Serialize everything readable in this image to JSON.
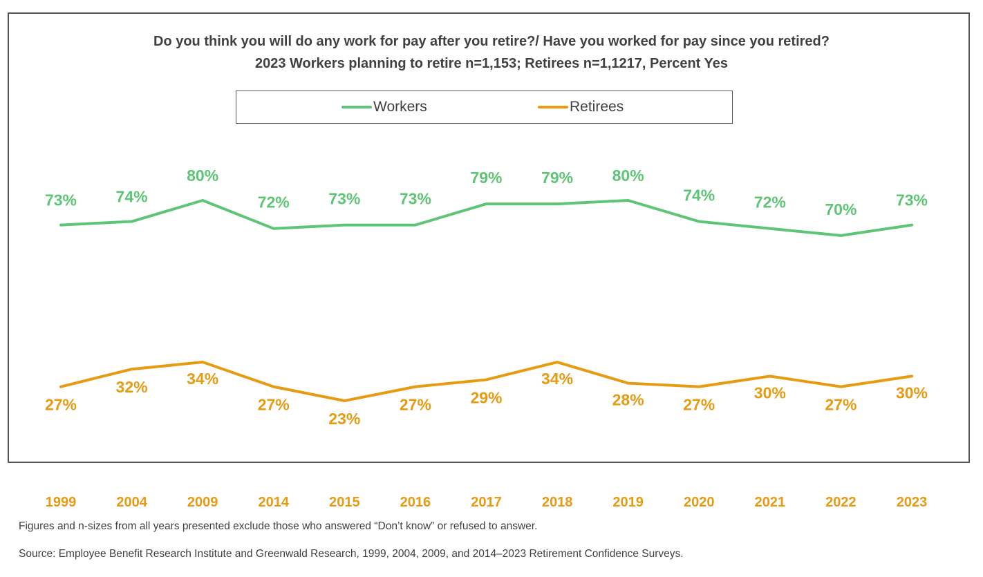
{
  "chart_data": {
    "type": "line",
    "title": "Do you think you will do any work for pay after you retire?/ Have you worked for pay since you retired?",
    "subtitle": "2023 Workers planning to retire n=1,153; Retirees n=1,1217, Percent Yes",
    "categories": [
      "1999",
      "2004",
      "2009",
      "2014",
      "2015",
      "2016",
      "2017",
      "2018",
      "2019",
      "2020",
      "2021",
      "2022",
      "2023"
    ],
    "series": [
      {
        "name": "Workers",
        "color": "#5ec576",
        "values": [
          73,
          74,
          80,
          72,
          73,
          73,
          79,
          79,
          80,
          74,
          72,
          70,
          73
        ],
        "labels": [
          "73%",
          "74%",
          "80%",
          "72%",
          "73%",
          "73%",
          "79%",
          "79%",
          "80%",
          "74%",
          "72%",
          "70%",
          "73%"
        ]
      },
      {
        "name": "Retirees",
        "color": "#e69b12",
        "values": [
          27,
          32,
          34,
          27,
          23,
          27,
          29,
          34,
          28,
          27,
          30,
          27,
          30
        ],
        "labels": [
          "27%",
          "32%",
          "34%",
          "27%",
          "23%",
          "27%",
          "29%",
          "34%",
          "28%",
          "27%",
          "30%",
          "27%",
          "30%"
        ]
      }
    ],
    "legend_position": "top",
    "grid": false,
    "tick_color": "#e69b12",
    "text_color": "#404040"
  },
  "notes": {
    "footnote": "Figures and n-sizes from all years presented exclude those who answered “Don’t know” or refused to answer.",
    "source": "Source:  Employee Benefit Research Institute and Greenwald Research, 1999, 2004, 2009, and 2014–2023 Retirement Confidence Surveys."
  }
}
